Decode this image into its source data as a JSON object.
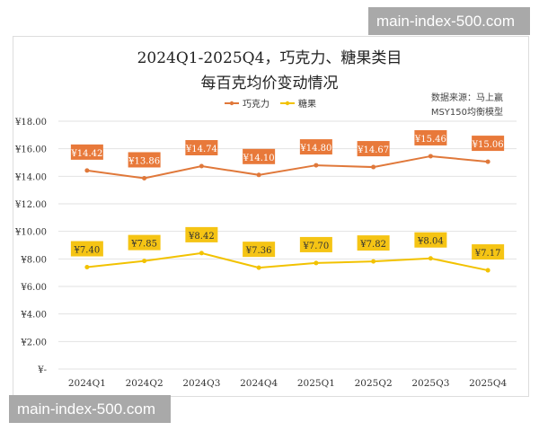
{
  "watermark": "main-index-500.com",
  "chart_data": {
    "type": "line",
    "title": "2024Q1-2025Q4，巧克力、糖果类目",
    "subtitle": "每百克均价变动情况",
    "source_line1": "数据来源：马上赢",
    "source_line2": "MSY150均衡模型",
    "categories": [
      "2024Q1",
      "2024Q2",
      "2024Q3",
      "2024Q4",
      "2025Q1",
      "2025Q2",
      "2025Q3",
      "2025Q4"
    ],
    "series": [
      {
        "name": "巧克力",
        "color": "#E0783A",
        "values": [
          14.42,
          13.86,
          14.74,
          14.1,
          14.8,
          14.67,
          15.46,
          15.06
        ],
        "labels": [
          "¥14.42",
          "¥13.86",
          "¥14.74",
          "¥14.10",
          "¥14.80",
          "¥14.67",
          "¥15.46",
          "¥15.06"
        ]
      },
      {
        "name": "糖果",
        "color": "#F2C200",
        "values": [
          7.4,
          7.85,
          8.42,
          7.36,
          7.7,
          7.82,
          8.04,
          7.17
        ],
        "labels": [
          "¥7.40",
          "¥7.85",
          "¥8.42",
          "¥7.36",
          "¥7.70",
          "¥7.82",
          "¥8.04",
          "¥7.17"
        ]
      }
    ],
    "ylim": [
      0,
      18
    ],
    "yticks": [
      0,
      2,
      4,
      6,
      8,
      10,
      12,
      14,
      16,
      18
    ],
    "ytick_labels": [
      "¥-",
      "¥2.00",
      "¥4.00",
      "¥6.00",
      "¥8.00",
      "¥10.00",
      "¥12.00",
      "¥14.00",
      "¥16.00",
      "¥18.00"
    ],
    "grid": true,
    "legend_position": "top"
  }
}
